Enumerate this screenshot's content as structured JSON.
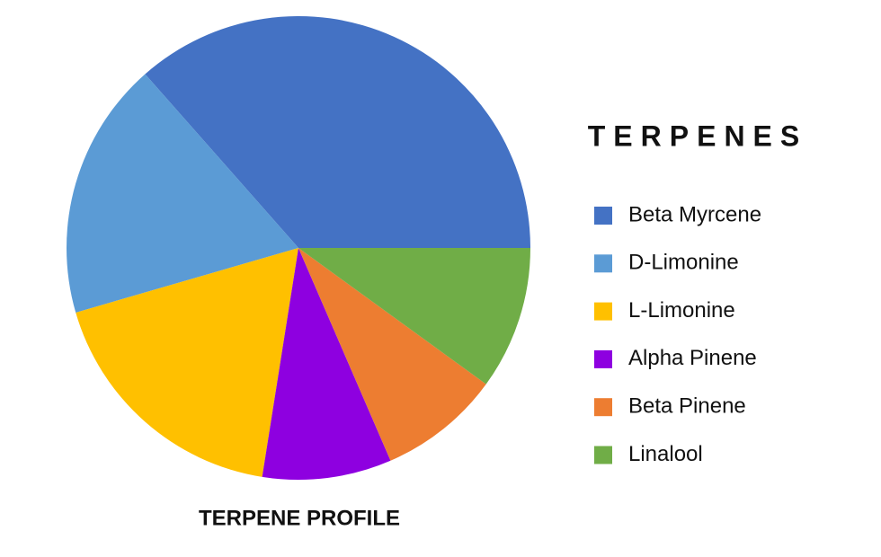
{
  "chart_data": {
    "type": "pie",
    "title": "TERPENE PROFILE",
    "legend_title": "TERPENES",
    "categories": [
      "Beta Myrcene",
      "D-Limonine",
      "L-Limonine",
      "Alpha Pinene",
      "Beta Pinene",
      "Linalool"
    ],
    "values": [
      36.5,
      18,
      18,
      9,
      8.5,
      10
    ],
    "colors": [
      "#4472c4",
      "#5b9bd5",
      "#ffc000",
      "#8e00e0",
      "#ed7d31",
      "#70ad47"
    ],
    "legend": "right"
  }
}
